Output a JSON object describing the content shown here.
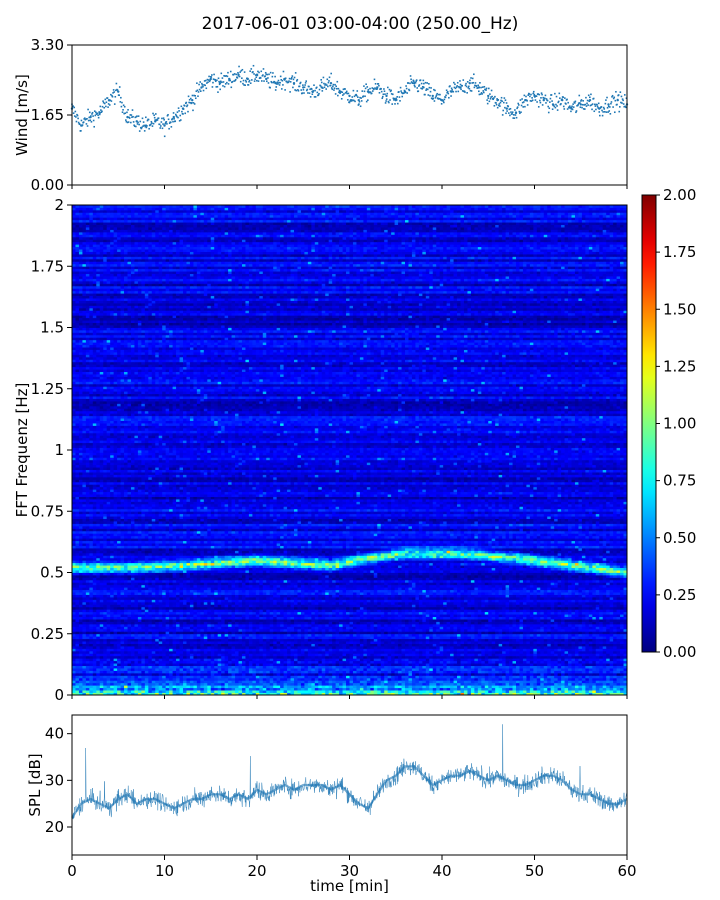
{
  "figure": {
    "title": "2017-06-01 03:00-04:00 (250.00_Hz)"
  },
  "colors": {
    "wind_marker": "#1f77b4",
    "spl_line": "#1f77b4",
    "colormap": "jet"
  },
  "chart_data": [
    {
      "type": "scatter",
      "name": "wind",
      "ylabel": "Wind [m/s]",
      "xlabel": "",
      "xlim": [
        0,
        60
      ],
      "ylim": [
        0,
        3.3
      ],
      "yticks": [
        "0.00",
        "1.65",
        "3.30"
      ],
      "x": [
        0,
        1,
        2,
        3,
        4,
        5,
        6,
        7,
        8,
        9,
        10,
        11,
        12,
        13,
        14,
        15,
        16,
        17,
        18,
        19,
        20,
        21,
        22,
        23,
        24,
        25,
        26,
        27,
        28,
        29,
        30,
        31,
        32,
        33,
        34,
        35,
        36,
        37,
        38,
        39,
        40,
        41,
        42,
        43,
        44,
        45,
        46,
        47,
        48,
        49,
        50,
        51,
        52,
        53,
        54,
        55,
        56,
        57,
        58,
        59,
        60
      ],
      "y": [
        1.8,
        1.4,
        1.6,
        1.7,
        2.0,
        2.2,
        1.6,
        1.5,
        1.4,
        1.5,
        1.4,
        1.6,
        1.8,
        2.0,
        2.3,
        2.5,
        2.4,
        2.5,
        2.6,
        2.5,
        2.6,
        2.5,
        2.4,
        2.5,
        2.4,
        2.3,
        2.2,
        2.3,
        2.4,
        2.2,
        2.1,
        2.0,
        2.2,
        2.3,
        2.1,
        2.0,
        2.2,
        2.4,
        2.3,
        2.1,
        2.0,
        2.2,
        2.3,
        2.4,
        2.3,
        2.1,
        2.0,
        1.8,
        1.7,
        2.0,
        2.1,
        2.0,
        1.9,
        2.0,
        1.8,
        1.9,
        2.0,
        1.8,
        1.9,
        2.0,
        1.9
      ],
      "grid": false
    },
    {
      "type": "heatmap",
      "name": "spectrogram",
      "ylabel": "FFT Frequenz [Hz]",
      "xlabel": "",
      "xlim": [
        0,
        60
      ],
      "ylim": [
        0,
        2
      ],
      "yticks": [
        "0",
        "0.25",
        "0.5",
        "0.75",
        "1",
        "1.25",
        "1.5",
        "1.75",
        "2"
      ],
      "colorbar": {
        "min": 0,
        "max": 2,
        "ticks": [
          "0.00",
          "0.25",
          "0.50",
          "0.75",
          "1.00",
          "1.25",
          "1.50",
          "1.75",
          "2.00"
        ]
      },
      "typical_level": 0.2,
      "features": [
        {
          "label": "harmonic band",
          "frequency_hz": [
            0.52,
            0.52,
            0.53,
            0.55,
            0.53,
            0.56,
            0.58,
            0.58,
            0.56,
            0.53,
            0.5
          ],
          "time_min": [
            0,
            6,
            12,
            20,
            28,
            32,
            36,
            42,
            48,
            54,
            60
          ],
          "level": 0.9
        },
        {
          "label": "low-frequency energy",
          "frequency_hz": [
            0,
            0.06
          ],
          "level": 0.8
        }
      ]
    },
    {
      "type": "line",
      "name": "spl",
      "ylabel": "SPL [dB]",
      "xlabel": "time [min]",
      "xlim": [
        0,
        60
      ],
      "ylim": [
        14,
        44
      ],
      "yticks": [
        "20",
        "30",
        "40"
      ],
      "xticks": [
        "0",
        "10",
        "20",
        "30",
        "40",
        "50",
        "60"
      ],
      "x": [
        0,
        1,
        2,
        3,
        4,
        5,
        6,
        7,
        8,
        9,
        10,
        11,
        12,
        13,
        14,
        15,
        16,
        17,
        18,
        19,
        20,
        21,
        22,
        23,
        24,
        25,
        26,
        27,
        28,
        29,
        30,
        31,
        32,
        33,
        34,
        35,
        36,
        37,
        38,
        39,
        40,
        41,
        42,
        43,
        44,
        45,
        46,
        47,
        48,
        49,
        50,
        51,
        52,
        53,
        54,
        55,
        56,
        57,
        58,
        59,
        60
      ],
      "y": [
        22,
        25,
        26,
        25,
        24,
        26,
        27,
        25,
        26,
        26,
        25,
        24,
        25,
        26,
        26,
        27,
        27,
        26,
        27,
        26,
        28,
        27,
        28,
        29,
        28,
        29,
        29,
        29,
        28,
        29,
        27,
        25,
        24,
        27,
        30,
        31,
        33,
        33,
        31,
        29,
        30,
        31,
        31,
        32,
        31,
        30,
        31,
        30,
        29,
        29,
        30,
        31,
        31,
        30,
        28,
        27,
        27,
        26,
        25,
        25,
        26
      ],
      "band_spread": 2.5,
      "grid": false
    }
  ]
}
